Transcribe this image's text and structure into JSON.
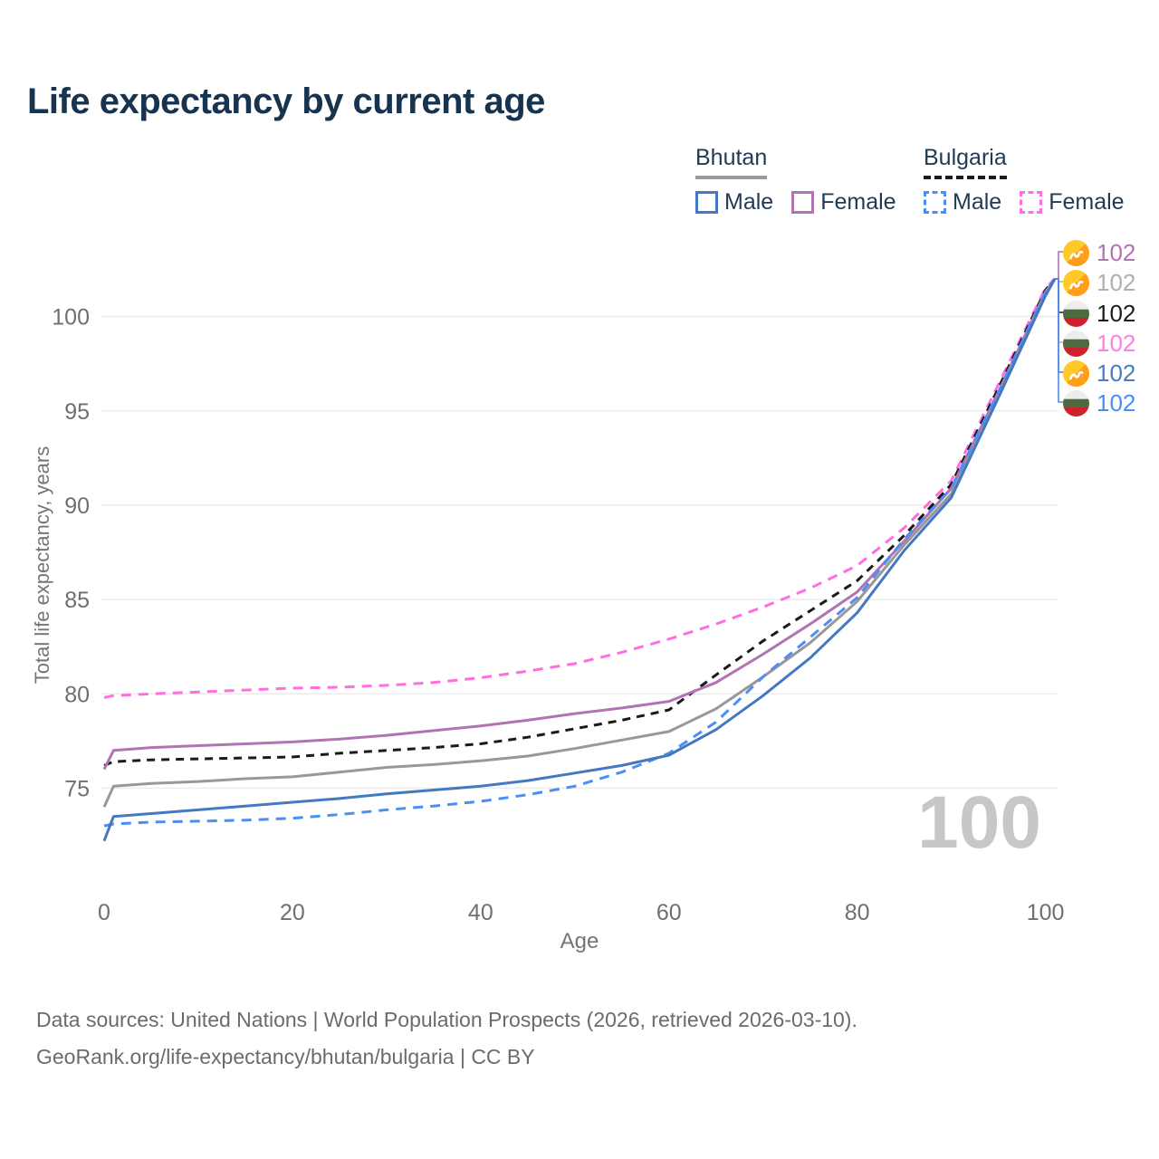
{
  "title": "Life expectancy by current age",
  "legend": {
    "bhutan": {
      "label": "Bhutan",
      "male": "Male",
      "female": "Female"
    },
    "bulgaria": {
      "label": "Bulgaria",
      "male": "Male",
      "female": "Female"
    }
  },
  "watermark": "100",
  "footer": {
    "line1": "Data sources: United Nations | World Population Prospects (2026, retrieved 2026-03-10).",
    "line2": "GeoRank.org/life-expectancy/bhutan/bulgaria | CC BY"
  },
  "colors": {
    "title_text": "#16334f",
    "legend_text": "#1f3a54",
    "axis_text": "#6f6f6f",
    "gridline": "#ececec",
    "watermark": "#c7c7c7",
    "footer_text": "#6b6b6b"
  },
  "chart_data": {
    "type": "line",
    "title": "Life expectancy by current age",
    "xlabel": "Age",
    "ylabel": "Total life expectancy, years",
    "x_ticks": [
      0,
      20,
      40,
      60,
      80,
      100
    ],
    "y_ticks": [
      75,
      80,
      85,
      90,
      95,
      100
    ],
    "xlim": [
      0,
      101
    ],
    "ylim": [
      69.5,
      104.3
    ],
    "grid": "horizontal-only",
    "legend_position": "top-right",
    "x": [
      0,
      1,
      5,
      10,
      15,
      20,
      25,
      30,
      35,
      40,
      45,
      50,
      55,
      60,
      65,
      70,
      75,
      80,
      85,
      90,
      95,
      100,
      101
    ],
    "series": [
      {
        "name": "Bulgaria Female",
        "country": "Bulgaria",
        "sex": "Female",
        "color": "#ff6ede",
        "dash": "dashed",
        "values": [
          79.8,
          79.9,
          80.0,
          80.1,
          80.2,
          80.3,
          80.35,
          80.45,
          80.6,
          80.85,
          81.2,
          81.6,
          82.2,
          82.9,
          83.7,
          84.6,
          85.6,
          86.8,
          88.8,
          91.3,
          96.4,
          101.5,
          102
        ]
      },
      {
        "name": "Bulgaria",
        "country": "Bulgaria",
        "sex": "Both",
        "color": "#1a1a1a",
        "dash": "dashed",
        "values": [
          76.2,
          76.4,
          76.5,
          76.55,
          76.6,
          76.65,
          76.85,
          77.0,
          77.15,
          77.35,
          77.7,
          78.15,
          78.6,
          79.15,
          81.0,
          82.8,
          84.4,
          86.0,
          88.4,
          91.1,
          96.2,
          101.4,
          102
        ]
      },
      {
        "name": "Bhutan Female",
        "country": "Bhutan",
        "sex": "Female",
        "color": "#b173b4",
        "dash": "solid",
        "values": [
          76.0,
          77.0,
          77.15,
          77.25,
          77.35,
          77.45,
          77.6,
          77.8,
          78.05,
          78.3,
          78.6,
          78.95,
          79.25,
          79.6,
          80.6,
          82.1,
          83.7,
          85.4,
          88.1,
          90.9,
          96.0,
          101.3,
          102
        ]
      },
      {
        "name": "Bhutan",
        "country": "Bhutan",
        "sex": "Both",
        "color": "#98989a",
        "dash": "solid",
        "values": [
          74.0,
          75.1,
          75.25,
          75.35,
          75.5,
          75.6,
          75.85,
          76.1,
          76.25,
          76.45,
          76.7,
          77.1,
          77.55,
          78.0,
          79.2,
          80.9,
          82.7,
          84.9,
          87.9,
          90.6,
          95.8,
          101.2,
          102
        ]
      },
      {
        "name": "Bulgaria Male",
        "country": "Bulgaria",
        "sex": "Male",
        "color": "#4d8ef5",
        "dash": "dashed",
        "values": [
          73.0,
          73.1,
          73.2,
          73.25,
          73.3,
          73.4,
          73.6,
          73.85,
          74.05,
          74.3,
          74.65,
          75.1,
          75.85,
          76.85,
          78.5,
          80.9,
          83.0,
          85.1,
          88.2,
          90.9,
          96.0,
          101.3,
          102
        ]
      },
      {
        "name": "Bhutan Male",
        "country": "Bhutan",
        "sex": "Male",
        "color": "#4478c0",
        "dash": "solid",
        "values": [
          72.2,
          73.5,
          73.65,
          73.85,
          74.05,
          74.25,
          74.45,
          74.7,
          74.9,
          75.1,
          75.4,
          75.8,
          76.2,
          76.75,
          78.1,
          79.9,
          81.9,
          84.3,
          87.6,
          90.4,
          95.7,
          101.1,
          102
        ]
      }
    ],
    "end_labels": [
      {
        "series": "Bhutan Female",
        "value": "102",
        "color": "#b173b4",
        "flag": "bhutan"
      },
      {
        "series": "Bhutan",
        "value": "102",
        "color": "#b0b0b0",
        "flag": "bhutan"
      },
      {
        "series": "Bulgaria",
        "value": "102",
        "color": "#1c1c1c",
        "flag": "bulgaria"
      },
      {
        "series": "Bulgaria Female",
        "value": "102",
        "color": "#ff80e0",
        "flag": "bulgaria"
      },
      {
        "series": "Bhutan Male",
        "value": "102",
        "color": "#4a7cc4",
        "flag": "bhutan"
      },
      {
        "series": "Bulgaria Male",
        "value": "102",
        "color": "#4b8cf5",
        "flag": "bulgaria"
      }
    ]
  }
}
